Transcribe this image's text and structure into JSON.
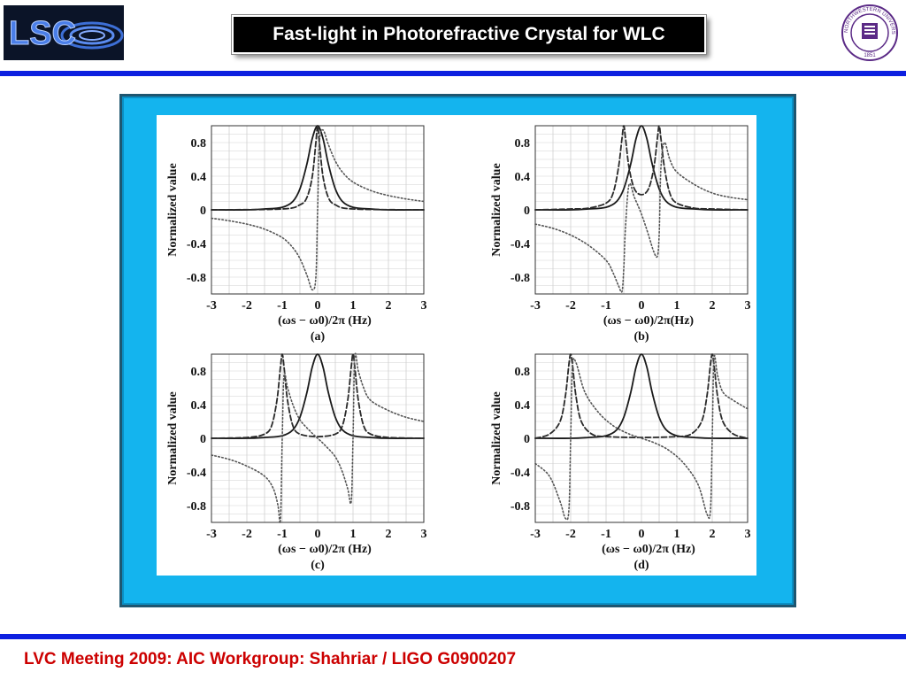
{
  "header": {
    "title": "Fast-light in Photorefractive Crystal for WLC",
    "logo_left": "LSC",
    "seal_text": "NORTHWESTERN UNIVERSITY",
    "seal_year": "1851"
  },
  "footer": {
    "text": "LVC  Meeting 2009:  AIC Workgroup:  Shahriar / LIGO G0900207"
  },
  "colors": {
    "accent_rule": "#0d20e0",
    "frame": "#14b4ee",
    "footer": "#cc0000"
  },
  "chart_data": [
    {
      "type": "line",
      "panel_label": "(a)",
      "ylabel": "Normalized value",
      "xlabel": "(ωs − ω0)/2π (Hz)",
      "xlim": [
        -3,
        3
      ],
      "ylim": [
        -1,
        1
      ],
      "xticks": [
        -3,
        -2,
        -1,
        0,
        1,
        2,
        3
      ],
      "yticks": [
        "0.8",
        "0.4",
        "0",
        "-0.4",
        "-0.8"
      ],
      "grid": true,
      "series": [
        {
          "style": "solid",
          "x": [
            -3,
            -2,
            -1.5,
            -1,
            -0.7,
            -0.5,
            -0.3,
            -0.15,
            0,
            0.15,
            0.3,
            0.5,
            0.7,
            1,
            1.5,
            2,
            3
          ],
          "y": [
            0,
            0,
            0.01,
            0.03,
            0.1,
            0.25,
            0.55,
            0.85,
            1,
            0.85,
            0.55,
            0.25,
            0.1,
            0.03,
            0.01,
            0,
            0
          ]
        },
        {
          "style": "dashed",
          "x": [
            -3,
            -1,
            -0.5,
            -0.3,
            -0.15,
            -0.05,
            0,
            0.05,
            0.15,
            0.3,
            0.5,
            1,
            3
          ],
          "y": [
            0,
            0.01,
            0.06,
            0.15,
            0.4,
            0.8,
            1,
            0.8,
            0.4,
            0.15,
            0.06,
            0.01,
            0
          ]
        },
        {
          "style": "dotted",
          "x": [
            -3,
            -2.5,
            -2,
            -1.5,
            -1,
            -0.7,
            -0.5,
            -0.3,
            -0.15,
            -0.05,
            0,
            0.05,
            0.15,
            0.3,
            0.5,
            0.7,
            1,
            1.5,
            2,
            2.5,
            3
          ],
          "y": [
            -0.1,
            -0.13,
            -0.17,
            -0.23,
            -0.33,
            -0.45,
            -0.58,
            -0.78,
            -0.95,
            -0.8,
            0,
            0.8,
            0.95,
            0.78,
            0.58,
            0.45,
            0.33,
            0.23,
            0.17,
            0.13,
            0.1
          ]
        }
      ]
    },
    {
      "type": "line",
      "panel_label": "(b)",
      "ylabel": "Normalized value",
      "xlabel": "(ωs − ω0)/2π(Hz)",
      "xlim": [
        -3,
        3
      ],
      "ylim": [
        -1,
        1
      ],
      "xticks": [
        -3,
        -2,
        -1,
        0,
        1,
        2,
        3
      ],
      "yticks": [
        "0.8",
        "0.4",
        "0",
        "-0.4",
        "-0.8"
      ],
      "grid": true,
      "series": [
        {
          "style": "solid",
          "x": [
            -3,
            -2,
            -1.5,
            -1,
            -0.7,
            -0.5,
            -0.3,
            -0.15,
            0,
            0.15,
            0.3,
            0.5,
            0.7,
            1,
            1.5,
            2,
            3
          ],
          "y": [
            0,
            0,
            0.01,
            0.03,
            0.1,
            0.25,
            0.55,
            0.85,
            1,
            0.85,
            0.55,
            0.25,
            0.1,
            0.03,
            0.01,
            0,
            0
          ]
        },
        {
          "style": "dashed",
          "x": [
            -3,
            -2,
            -1.5,
            -1,
            -0.8,
            -0.65,
            -0.55,
            -0.5,
            -0.45,
            -0.35,
            -0.2,
            0,
            0.2,
            0.35,
            0.45,
            0.5,
            0.55,
            0.65,
            0.8,
            1,
            1.5,
            2,
            3
          ],
          "y": [
            0,
            0.01,
            0.02,
            0.08,
            0.2,
            0.5,
            0.85,
            1,
            0.85,
            0.5,
            0.25,
            0.18,
            0.25,
            0.5,
            0.85,
            1,
            0.85,
            0.5,
            0.2,
            0.08,
            0.02,
            0.01,
            0
          ]
        },
        {
          "style": "dotted",
          "x": [
            -3,
            -2.5,
            -2,
            -1.5,
            -1,
            -0.8,
            -0.65,
            -0.55,
            -0.5,
            -0.45,
            -0.35,
            -0.2,
            0,
            0.2,
            0.35,
            0.45,
            0.5,
            0.55,
            0.65,
            0.8,
            1,
            1.5,
            2,
            2.5,
            3
          ],
          "y": [
            -0.17,
            -0.22,
            -0.3,
            -0.42,
            -0.6,
            -0.75,
            -0.9,
            -0.97,
            -0.7,
            -0.2,
            0.3,
            0.15,
            -0.05,
            -0.3,
            -0.5,
            -0.55,
            -0.3,
            0.5,
            0.8,
            0.6,
            0.45,
            0.3,
            0.2,
            0.15,
            0.12
          ]
        }
      ]
    },
    {
      "type": "line",
      "panel_label": "(c)",
      "ylabel": "Normalized value",
      "xlabel": "(ωs − ω0)/2π (Hz)",
      "xlim": [
        -3,
        3
      ],
      "ylim": [
        -1,
        1
      ],
      "xticks": [
        -3,
        -2,
        -1,
        0,
        1,
        2,
        3
      ],
      "yticks": [
        "0.8",
        "0.4",
        "0",
        "-0.4",
        "-0.8"
      ],
      "grid": true,
      "series": [
        {
          "style": "solid",
          "x": [
            -3,
            -2,
            -1.5,
            -1,
            -0.7,
            -0.5,
            -0.3,
            -0.15,
            0,
            0.15,
            0.3,
            0.5,
            0.7,
            1,
            1.5,
            2,
            3
          ],
          "y": [
            0,
            0,
            0.01,
            0.03,
            0.1,
            0.25,
            0.55,
            0.85,
            1,
            0.85,
            0.55,
            0.25,
            0.1,
            0.03,
            0.01,
            0,
            0
          ]
        },
        {
          "style": "dashed",
          "x": [
            -3,
            -2,
            -1.5,
            -1.3,
            -1.15,
            -1.05,
            -1,
            -0.95,
            -0.85,
            -0.7,
            -0.5,
            0,
            0.5,
            0.7,
            0.85,
            0.95,
            1,
            1.05,
            1.15,
            1.3,
            1.5,
            2,
            3
          ],
          "y": [
            0,
            0.01,
            0.05,
            0.15,
            0.45,
            0.85,
            1,
            0.85,
            0.45,
            0.15,
            0.05,
            0.02,
            0.05,
            0.15,
            0.45,
            0.85,
            1,
            0.85,
            0.45,
            0.15,
            0.05,
            0.01,
            0
          ]
        },
        {
          "style": "dotted",
          "x": [
            -3,
            -2.5,
            -2,
            -1.5,
            -1.25,
            -1.12,
            -1.05,
            -1,
            -0.95,
            -0.85,
            -0.7,
            -0.5,
            -0.2,
            0,
            0.2,
            0.5,
            0.7,
            0.85,
            0.95,
            1,
            1.05,
            1.15,
            1.3,
            1.5,
            2,
            2.5,
            3
          ],
          "y": [
            -0.2,
            -0.25,
            -0.33,
            -0.45,
            -0.6,
            -0.8,
            -0.97,
            0,
            0.75,
            0.6,
            0.4,
            0.22,
            0.08,
            0,
            -0.08,
            -0.22,
            -0.4,
            -0.6,
            -0.75,
            0,
            0.97,
            0.8,
            0.6,
            0.45,
            0.33,
            0.25,
            0.2
          ]
        }
      ]
    },
    {
      "type": "line",
      "panel_label": "(d)",
      "ylabel": "Normalized value",
      "xlabel": "(ωs − ω0)/2π (Hz)",
      "xlim": [
        -3,
        3
      ],
      "ylim": [
        -1,
        1
      ],
      "xticks": [
        -3,
        -2,
        -1,
        0,
        1,
        2,
        3
      ],
      "yticks": [
        "0.8",
        "0.4",
        "0",
        "-0.4",
        "-0.8"
      ],
      "grid": true,
      "series": [
        {
          "style": "solid",
          "x": [
            -3,
            -2,
            -1.5,
            -1,
            -0.7,
            -0.5,
            -0.3,
            -0.15,
            0,
            0.15,
            0.3,
            0.5,
            0.7,
            1,
            1.5,
            2,
            3
          ],
          "y": [
            0,
            0,
            0.01,
            0.03,
            0.1,
            0.25,
            0.55,
            0.85,
            1,
            0.85,
            0.55,
            0.25,
            0.1,
            0.03,
            0.01,
            0,
            0
          ]
        },
        {
          "style": "dashed",
          "x": [
            -3,
            -2.6,
            -2.3,
            -2.15,
            -2.05,
            -2,
            -1.95,
            -1.85,
            -1.7,
            -1.4,
            -1,
            0,
            1,
            1.4,
            1.7,
            1.85,
            1.95,
            2,
            2.05,
            2.15,
            2.3,
            2.6,
            3
          ],
          "y": [
            0,
            0.05,
            0.2,
            0.5,
            0.88,
            1,
            0.88,
            0.5,
            0.2,
            0.05,
            0.02,
            0.01,
            0.02,
            0.05,
            0.2,
            0.5,
            0.88,
            1,
            0.88,
            0.5,
            0.2,
            0.05,
            0
          ]
        },
        {
          "style": "dotted",
          "x": [
            -3,
            -2.6,
            -2.3,
            -2.15,
            -2.05,
            -2,
            -1.95,
            -1.85,
            -1.6,
            -1.2,
            -0.8,
            -0.4,
            0,
            0.4,
            0.8,
            1.2,
            1.6,
            1.85,
            1.95,
            2,
            2.05,
            2.15,
            2.3,
            2.6,
            3
          ],
          "y": [
            -0.3,
            -0.45,
            -0.75,
            -0.95,
            -0.85,
            0,
            0.85,
            0.9,
            0.55,
            0.3,
            0.15,
            0.06,
            0,
            -0.06,
            -0.15,
            -0.3,
            -0.55,
            -0.9,
            -0.85,
            0,
            0.95,
            0.75,
            0.55,
            0.45,
            0.35
          ]
        }
      ]
    }
  ]
}
